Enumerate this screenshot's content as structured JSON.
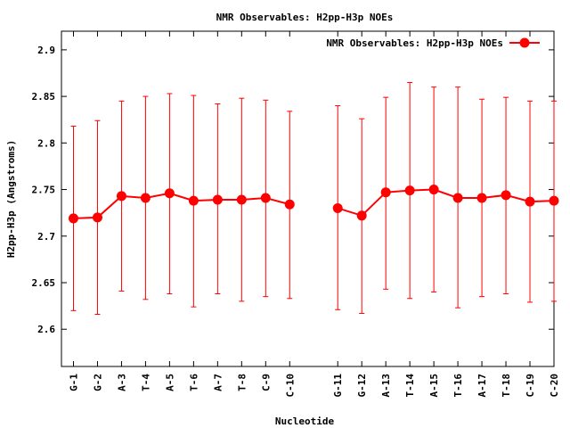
{
  "chart_data": {
    "type": "line",
    "title": "NMR Observables: H2pp-H3p NOEs",
    "xlabel": "Nucleotide",
    "ylabel": "H2pp-H3p (Angstroms)",
    "ylim": [
      2.56,
      2.92
    ],
    "yticks": [
      2.6,
      2.65,
      2.7,
      2.75,
      2.8,
      2.85,
      2.9
    ],
    "ytick_labels": [
      "2.6",
      "2.65",
      "2.7",
      "2.75",
      "2.8",
      "2.85",
      "2.9"
    ],
    "xlim": [
      0.5,
      21
    ],
    "grid": false,
    "legend_position": "top-right",
    "series": [
      {
        "name": "NMR Observables: H2pp-H3p NOEs",
        "color": "#ff0000",
        "segments": [
          {
            "labels": [
              "G-1",
              "G-2",
              "A-3",
              "T-4",
              "A-5",
              "T-6",
              "A-7",
              "T-8",
              "C-9",
              "C-10"
            ],
            "x": [
              1,
              2,
              3,
              4,
              5,
              6,
              7,
              8,
              9,
              10
            ],
            "y": [
              2.719,
              2.72,
              2.743,
              2.741,
              2.746,
              2.738,
              2.739,
              2.739,
              2.741,
              2.734
            ],
            "y_low": [
              2.62,
              2.616,
              2.641,
              2.632,
              2.638,
              2.624,
              2.638,
              2.63,
              2.635,
              2.633
            ],
            "y_high": [
              2.818,
              2.824,
              2.845,
              2.85,
              2.853,
              2.851,
              2.842,
              2.848,
              2.846,
              2.834
            ]
          },
          {
            "labels": [
              "G-11",
              "G-12",
              "A-13",
              "T-14",
              "A-15",
              "T-16",
              "A-17",
              "T-18",
              "C-19",
              "C-20"
            ],
            "x": [
              12,
              13,
              14,
              15,
              16,
              17,
              18,
              19,
              20,
              21
            ],
            "y": [
              2.73,
              2.722,
              2.747,
              2.749,
              2.75,
              2.741,
              2.741,
              2.744,
              2.737,
              2.738
            ],
            "y_low": [
              2.621,
              2.617,
              2.643,
              2.633,
              2.64,
              2.623,
              2.635,
              2.638,
              2.629,
              2.63
            ],
            "y_high": [
              2.84,
              2.826,
              2.849,
              2.865,
              2.86,
              2.86,
              2.847,
              2.849,
              2.845,
              2.845
            ]
          }
        ]
      }
    ]
  }
}
